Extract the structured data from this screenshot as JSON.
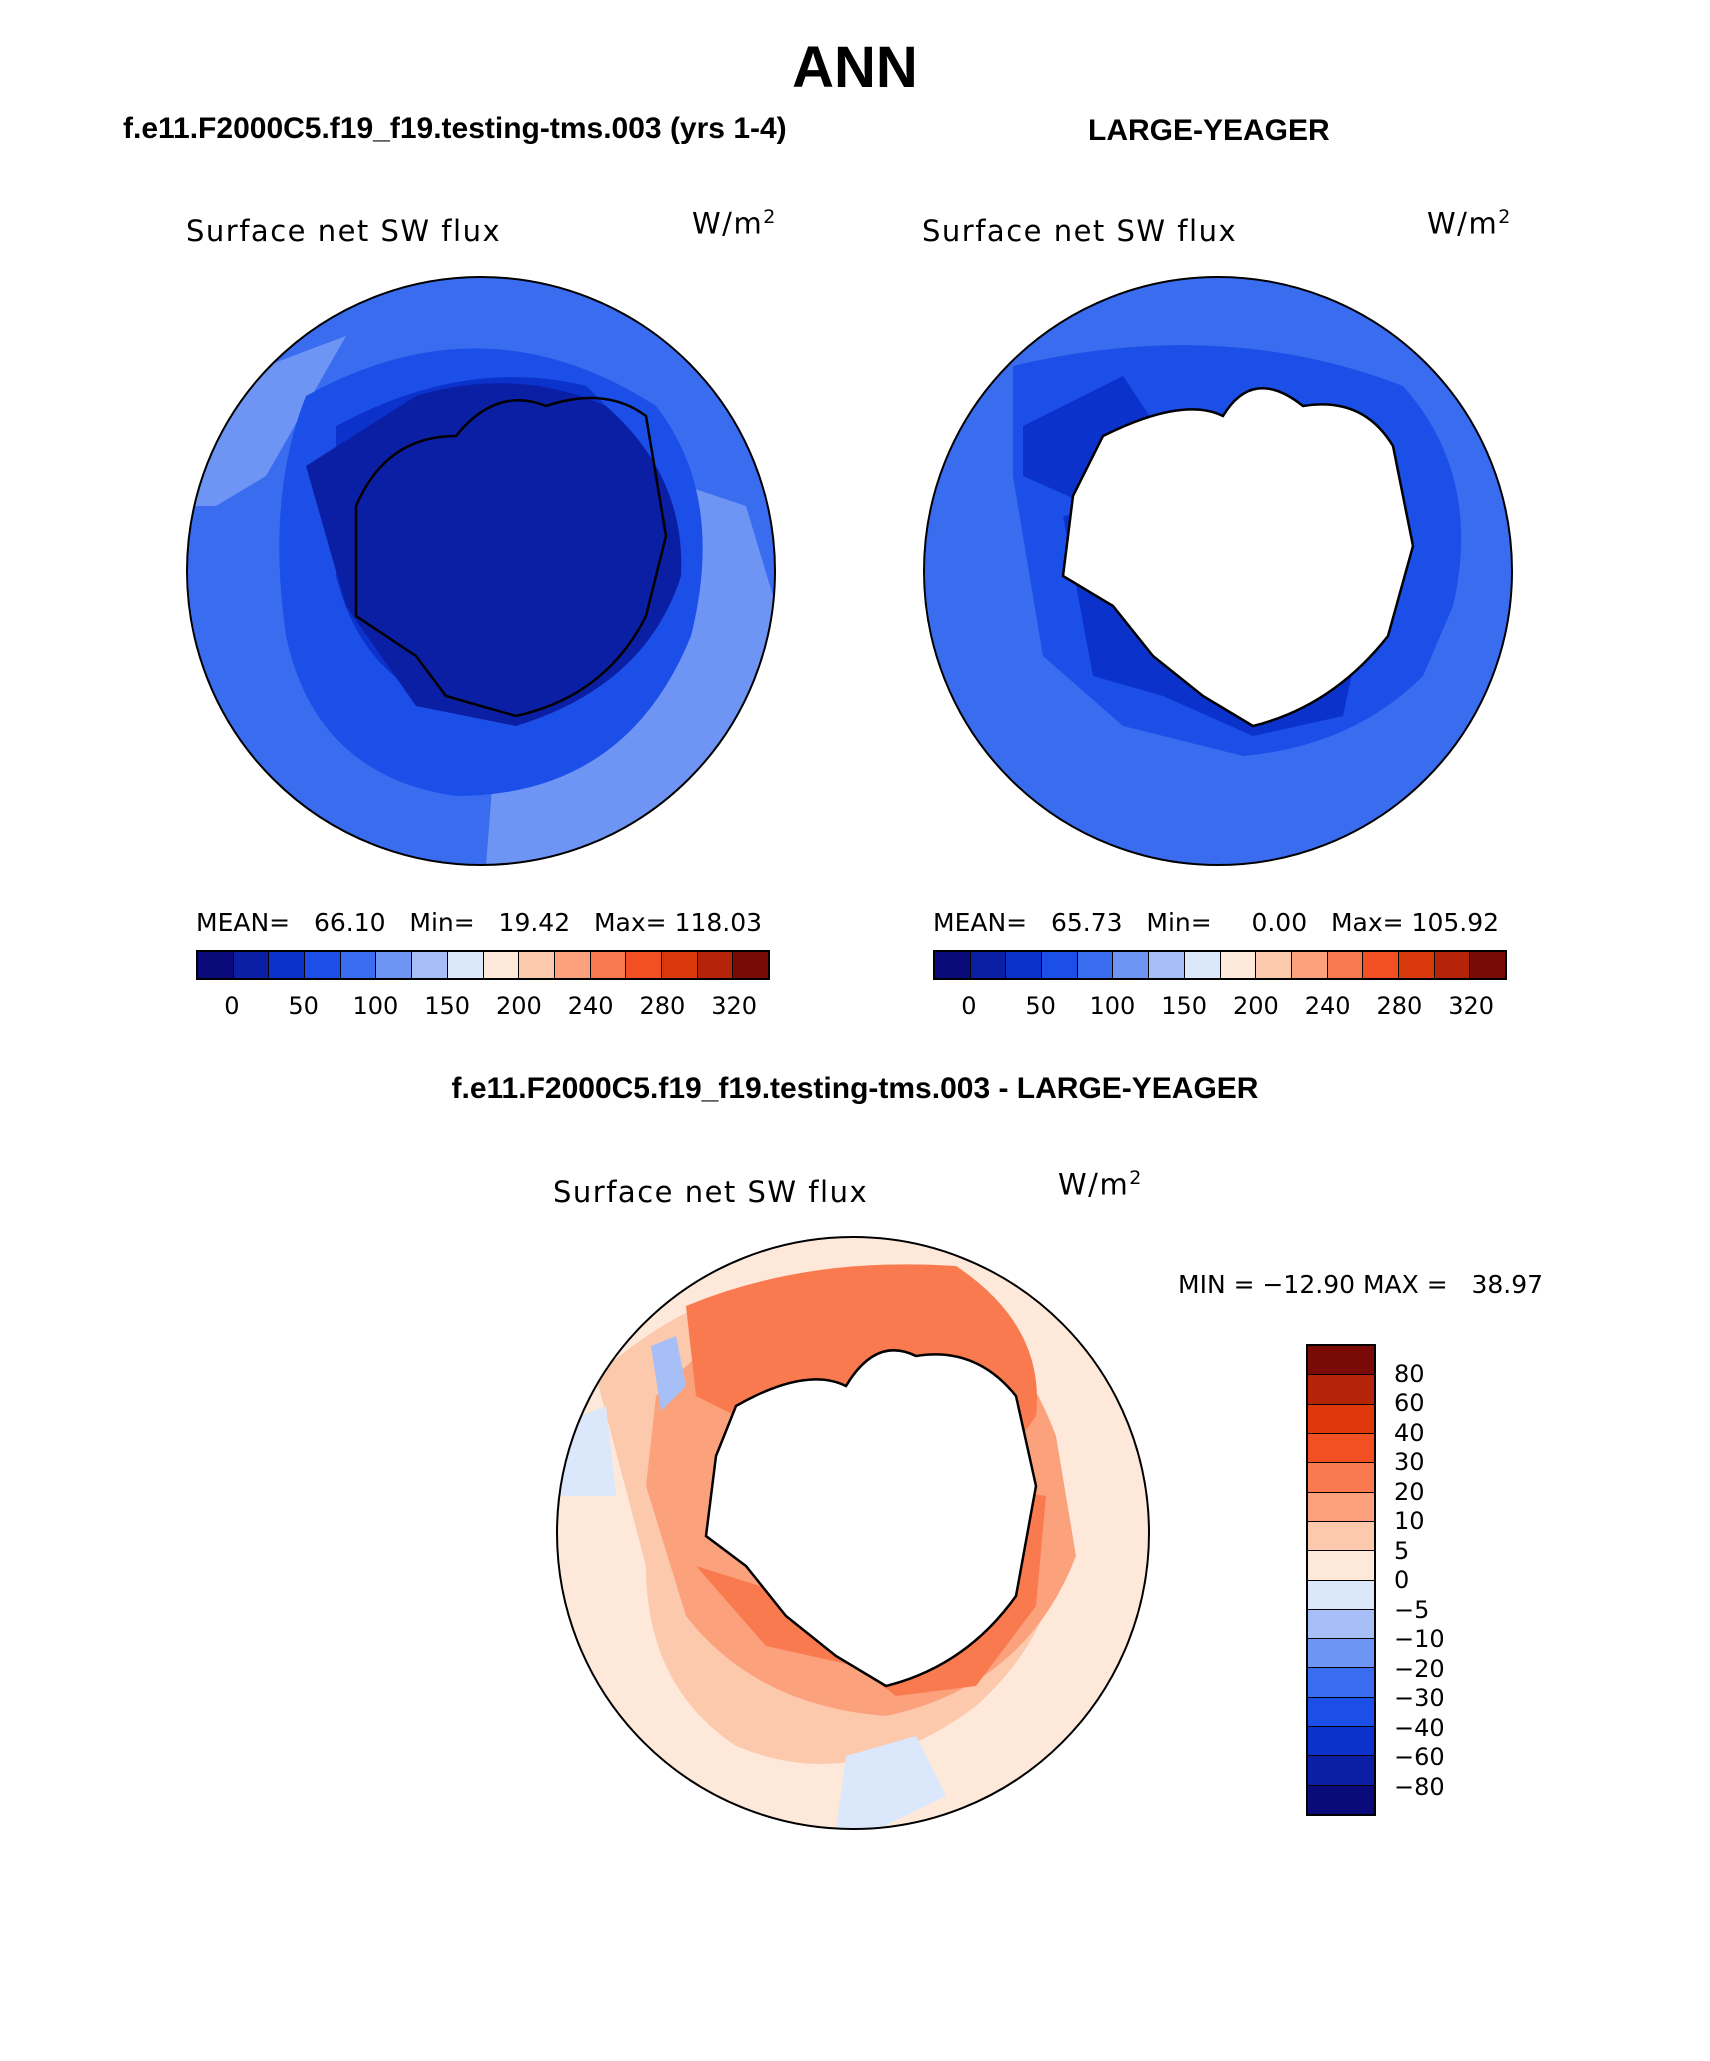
{
  "title": "ANN",
  "panels": {
    "left": {
      "case_title": "f.e11.F2000C5.f19_f19.testing-tms.003 (yrs 1-4)",
      "variable": "Surface net SW flux",
      "units_base": "W/m",
      "units_exp": "2",
      "mean_label": "MEAN=",
      "mean_value": "66.10",
      "min_label": "Min=",
      "min_value": "19.42",
      "max_label": "Max=",
      "max_value": "118.03"
    },
    "right": {
      "case_title": "LARGE-YEAGER",
      "variable": "Surface net SW flux",
      "units_base": "W/m",
      "units_exp": "2",
      "mean_label": "MEAN=",
      "mean_value": "65.73",
      "min_label": "Min=",
      "min_value": "0.00",
      "max_label": "Max=",
      "max_value": "105.92"
    },
    "diff": {
      "case_title": "f.e11.F2000C5.f19_f19.testing-tms.003 - LARGE-YEAGER",
      "variable": "Surface net SW flux",
      "units_base": "W/m",
      "units_exp": "2",
      "minmax": "MIN = −12.90 MAX =   38.97"
    }
  },
  "colorbar_top": {
    "tick_labels": [
      "0",
      "50",
      "100",
      "150",
      "200",
      "240",
      "280",
      "320"
    ],
    "colors": [
      "#0a0a7a",
      "#0b1fa5",
      "#0b33cc",
      "#1b4fe8",
      "#3a6cf0",
      "#6f95f4",
      "#a6bff7",
      "#dbe7fb",
      "#fde8da",
      "#fcc9ad",
      "#fba27d",
      "#f97a4f",
      "#f24f22",
      "#d9380d",
      "#b52408",
      "#7a0a05"
    ]
  },
  "colorbar_diff": {
    "tick_labels": [
      "80",
      "60",
      "40",
      "30",
      "20",
      "10",
      "5",
      "0",
      "−5",
      "−10",
      "−20",
      "−30",
      "−40",
      "−60",
      "−80"
    ],
    "colors": [
      "#7a0a05",
      "#b52408",
      "#e0380b",
      "#f24f22",
      "#f97a4f",
      "#fba27d",
      "#fcc9ad",
      "#fde8da",
      "#dbe7fb",
      "#a6bff7",
      "#6f95f4",
      "#3a6cf0",
      "#1b4fe8",
      "#0b33cc",
      "#0b1fa5",
      "#0a0a7a"
    ]
  }
}
